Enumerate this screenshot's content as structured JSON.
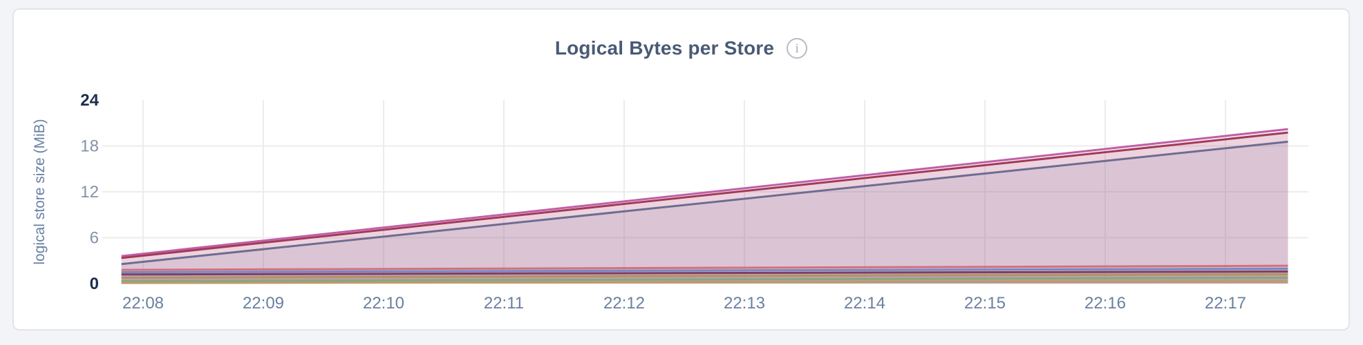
{
  "page": {
    "background": "#f3f4f8"
  },
  "card": {
    "background": "#ffffff",
    "border_color": "#e3e4e8"
  },
  "header": {
    "info_icon_glyph": "i"
  },
  "chart_data": {
    "type": "area",
    "title": "Logical Bytes per Store",
    "ylabel": "logical store size (MiB)",
    "xlabel": "",
    "legend": "none",
    "grid": true,
    "ylim": [
      0,
      24
    ],
    "x_ticks": [
      "22:08",
      "22:09",
      "22:10",
      "22:11",
      "22:12",
      "22:13",
      "22:14",
      "22:15",
      "22:16",
      "22:17"
    ],
    "x_minutes_range": [
      -0.18,
      9.52
    ],
    "y_ticks": [
      {
        "label": "0",
        "value": 0,
        "bold": true,
        "grid": false
      },
      {
        "label": "6",
        "value": 6,
        "bold": false,
        "grid": true
      },
      {
        "label": "12",
        "value": 12,
        "bold": false,
        "grid": true
      },
      {
        "label": "18",
        "value": 18,
        "bold": false,
        "grid": true
      },
      {
        "label": "24",
        "value": 24,
        "bold": true,
        "grid": false
      }
    ],
    "series": [
      {
        "id": "series-1",
        "color": "#c05fa8",
        "start": 3.6,
        "end": 20.2
      },
      {
        "id": "series-2",
        "color": "#a23a55",
        "start": 3.35,
        "end": 19.75
      },
      {
        "id": "series-3",
        "color": "#6e6c90",
        "start": 2.55,
        "end": 18.55
      },
      {
        "id": "series-4",
        "color": "#d4707f",
        "start": 1.79,
        "end": 2.33
      },
      {
        "id": "series-5",
        "color": "#7489c2",
        "start": 1.49,
        "end": 1.94
      },
      {
        "id": "series-6",
        "color": "#7e3f63",
        "start": 1.19,
        "end": 1.58
      },
      {
        "id": "series-7",
        "color": "#b3935e",
        "start": 0.77,
        "end": 1.22
      },
      {
        "id": "series-8",
        "color": "#85a87e",
        "start": 0.32,
        "end": 0.77
      },
      {
        "id": "series-9",
        "color": "#c0996a",
        "start": 0.08,
        "end": 0.3
      }
    ],
    "colors": {
      "title": "#4a5a75",
      "icon": "#b7bbc3",
      "gridline": "#ececee",
      "tick_bold": "#1d2c4e",
      "tick_light": "#8392a9",
      "x_tick": "#69809f",
      "axis_title": "#6880a3"
    }
  }
}
